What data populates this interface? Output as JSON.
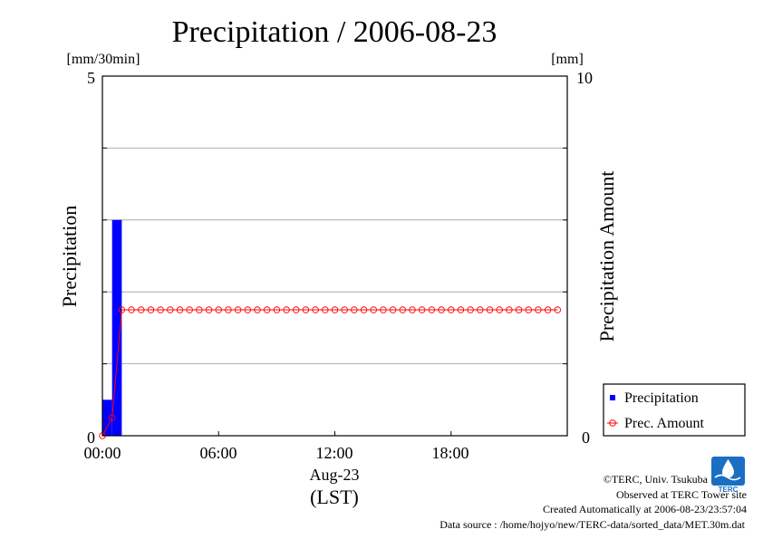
{
  "chart_data": {
    "type": "bar",
    "title": "Precipitation / 2006-08-23",
    "left_unit": "[mm/30min]",
    "right_unit": "[mm]",
    "ylabel": "Precipitation",
    "y2label": "Precipitation Amount",
    "ylim": [
      0,
      5
    ],
    "y2lim": [
      0,
      10
    ],
    "y_tick_labels": [
      "0",
      "5"
    ],
    "y2_tick_labels": [
      "0",
      "10"
    ],
    "y_gridlines": [
      1,
      2,
      3,
      4
    ],
    "xlim_hours": [
      0,
      24
    ],
    "x_tick_labels": [
      "00:00",
      "06:00",
      "12:00",
      "18:00"
    ],
    "x_tick_hours": [
      0,
      6,
      12,
      18
    ],
    "xlabel_date": "Aug-23",
    "xlabel_tz": "(LST)",
    "grid": true,
    "legend_position": "bottom-right (outside plot)",
    "series": [
      {
        "name": "Precipitation",
        "kind": "bar",
        "axis": "left",
        "color": "#0000ff",
        "x_hours": [
          0.0,
          0.5
        ],
        "values": [
          0.5,
          3.0
        ]
      },
      {
        "name": "Prec. Amount",
        "kind": "line-circle",
        "axis": "right",
        "color": "#ff0000",
        "x_hours": [
          0.0,
          0.5,
          1.0,
          1.5,
          2.0,
          2.5,
          3.0,
          3.5,
          4.0,
          4.5,
          5.0,
          5.5,
          6.0,
          6.5,
          7.0,
          7.5,
          8.0,
          8.5,
          9.0,
          9.5,
          10.0,
          10.5,
          11.0,
          11.5,
          12.0,
          12.5,
          13.0,
          13.5,
          14.0,
          14.5,
          15.0,
          15.5,
          16.0,
          16.5,
          17.0,
          17.5,
          18.0,
          18.5,
          19.0,
          19.5,
          20.0,
          20.5,
          21.0,
          21.5,
          22.0,
          22.5,
          23.0,
          23.5
        ],
        "values": [
          0.0,
          0.5,
          3.5,
          3.5,
          3.5,
          3.5,
          3.5,
          3.5,
          3.5,
          3.5,
          3.5,
          3.5,
          3.5,
          3.5,
          3.5,
          3.5,
          3.5,
          3.5,
          3.5,
          3.5,
          3.5,
          3.5,
          3.5,
          3.5,
          3.5,
          3.5,
          3.5,
          3.5,
          3.5,
          3.5,
          3.5,
          3.5,
          3.5,
          3.5,
          3.5,
          3.5,
          3.5,
          3.5,
          3.5,
          3.5,
          3.5,
          3.5,
          3.5,
          3.5,
          3.5,
          3.5,
          3.5,
          3.5
        ]
      }
    ]
  },
  "credits": {
    "copyright": "©TERC, Univ. Tsukuba",
    "observed": "Observed at TERC Tower site",
    "created": "Created Automatically at 2006-08-23/23:57:04",
    "source": "Data source : /home/hojyo/new/TERC-data/sorted_data/MET.30m.dat",
    "logo_text": "TERC"
  }
}
